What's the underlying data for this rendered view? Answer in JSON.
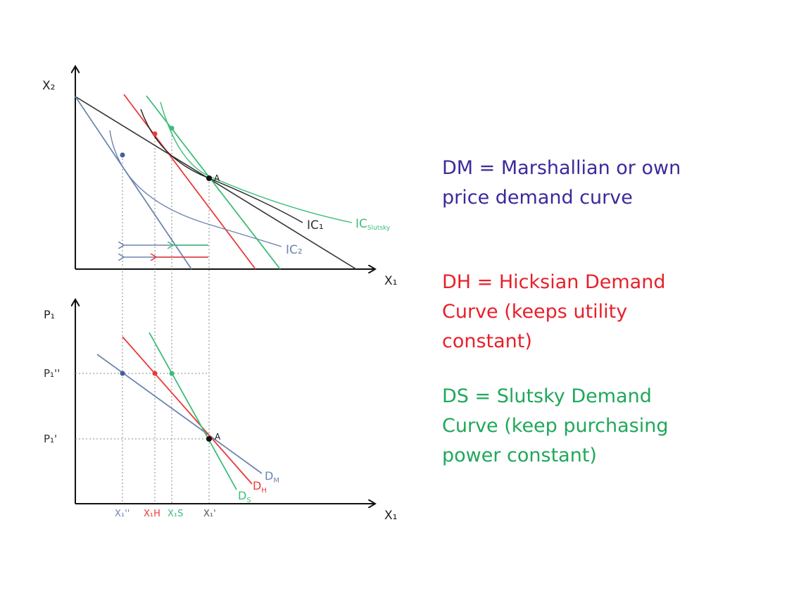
{
  "colors": {
    "axis": "#111111",
    "black": "#1a1a1a",
    "marshallian": "#6e85b0",
    "hicksian": "#e83a3a",
    "slutsky": "#3dbd78",
    "legend_dm": "#3a2a9c",
    "legend_dh": "#e8202a",
    "legend_ds": "#1fa85a",
    "dotted": "#888888"
  },
  "top_panel": {
    "y_axis_label": "X₂",
    "x_axis_label": "X₁",
    "ic1_label": "IC₁",
    "ic2_label": "IC₂",
    "ic_slutsky_label": "IC",
    "ic_slutsky_sub": "Slutsky",
    "point_a_label": "A"
  },
  "bottom_panel": {
    "y_axis_label": "P₁",
    "x_axis_label": "X₁",
    "p_high_label": "P₁''",
    "p_low_label": "P₁'",
    "point_a_label": "A",
    "dm_label": "D",
    "dm_sub": "M",
    "dh_label": "D",
    "dh_sub": "H",
    "ds_label": "D",
    "ds_sub": "S",
    "x_ticks": [
      "X₁''",
      "X₁H",
      "X₁S",
      "X₁'"
    ]
  },
  "legend": {
    "dm": "DM = Marshallian or own price demand curve",
    "dh": "DH = Hicksian Demand Curve (keeps utility constant)",
    "ds": "DS = Slutsky Demand Curve (keep purchasing power constant)"
  }
}
